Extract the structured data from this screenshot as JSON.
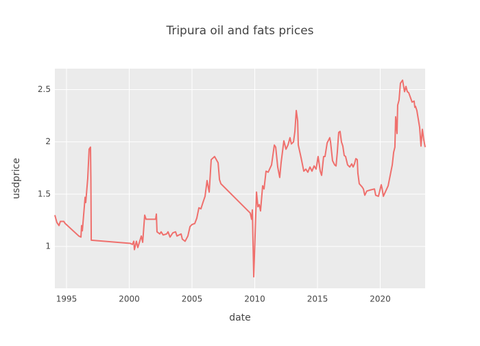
{
  "chart_data": {
    "type": "line",
    "title": "Tripura oil and fats prices",
    "x_label": "date",
    "y_label": "usdprice",
    "x": [
      1994.07,
      1994.23,
      1994.4,
      1994.51,
      1994.78,
      1994.89,
      1995.98,
      1996.15,
      1996.2,
      1996.26,
      1996.48,
      1996.53,
      1996.69,
      1996.8,
      1996.91,
      1996.94,
      1996.97,
      2000.08,
      2000.25,
      2000.36,
      2000.41,
      2000.57,
      2000.68,
      2000.96,
      2001.07,
      2001.23,
      2001.34,
      2002.1,
      2002.16,
      2002.21,
      2002.43,
      2002.54,
      2002.7,
      2002.98,
      2003.09,
      2003.25,
      2003.47,
      2003.69,
      2003.8,
      2004.13,
      2004.23,
      2004.45,
      2004.67,
      2004.84,
      2005.0,
      2005.22,
      2005.38,
      2005.55,
      2005.71,
      2005.87,
      2006.04,
      2006.2,
      2006.37,
      2006.53,
      2006.8,
      2007.08,
      2007.19,
      2007.3,
      2009.64,
      2009.75,
      2009.81,
      2009.92,
      2010.14,
      2010.25,
      2010.36,
      2010.46,
      2010.63,
      2010.74,
      2010.9,
      2011.07,
      2011.34,
      2011.56,
      2011.67,
      2011.83,
      2011.99,
      2012.1,
      2012.32,
      2012.49,
      2012.65,
      2012.81,
      2012.92,
      2013.09,
      2013.2,
      2013.31,
      2013.42,
      2013.47,
      2013.69,
      2013.91,
      2014.07,
      2014.23,
      2014.4,
      2014.56,
      2014.73,
      2014.89,
      2015.05,
      2015.22,
      2015.33,
      2015.49,
      2015.6,
      2015.77,
      2015.98,
      2016.04,
      2016.2,
      2016.37,
      2016.48,
      2016.58,
      2016.69,
      2016.8,
      2016.91,
      2017.02,
      2017.13,
      2017.24,
      2017.4,
      2017.57,
      2017.73,
      2017.84,
      2017.95,
      2018.06,
      2018.17,
      2018.22,
      2018.33,
      2018.55,
      2018.66,
      2018.77,
      2018.93,
      2019.21,
      2019.54,
      2019.64,
      2019.86,
      2020.08,
      2020.14,
      2020.25,
      2020.63,
      2020.96,
      2021.07,
      2021.17,
      2021.23,
      2021.34,
      2021.39,
      2021.5,
      2021.61,
      2021.78,
      2021.94,
      2022.05,
      2022.16,
      2022.27,
      2022.54,
      2022.7,
      2022.76,
      2022.81,
      2022.92,
      2023.14,
      2023.25,
      2023.36,
      2023.47,
      2023.58
    ],
    "values": [
      1.3,
      1.23,
      1.2,
      1.24,
      1.24,
      1.22,
      1.1,
      1.09,
      1.2,
      1.15,
      1.47,
      1.42,
      1.65,
      1.93,
      1.95,
      1.65,
      1.06,
      1.03,
      1.02,
      1.05,
      0.97,
      1.05,
      0.99,
      1.1,
      1.04,
      1.3,
      1.26,
      1.26,
      1.31,
      1.14,
      1.12,
      1.14,
      1.11,
      1.12,
      1.14,
      1.09,
      1.13,
      1.14,
      1.1,
      1.12,
      1.07,
      1.05,
      1.1,
      1.19,
      1.21,
      1.22,
      1.27,
      1.37,
      1.36,
      1.42,
      1.48,
      1.63,
      1.52,
      1.83,
      1.86,
      1.8,
      1.64,
      1.6,
      1.32,
      1.26,
      1.35,
      0.71,
      1.52,
      1.38,
      1.4,
      1.34,
      1.58,
      1.55,
      1.72,
      1.71,
      1.78,
      1.97,
      1.95,
      1.76,
      1.66,
      1.8,
      2.01,
      1.93,
      1.97,
      2.04,
      1.98,
      2.0,
      2.1,
      2.3,
      2.2,
      1.97,
      1.85,
      1.72,
      1.74,
      1.71,
      1.76,
      1.72,
      1.77,
      1.74,
      1.86,
      1.72,
      1.68,
      1.86,
      1.86,
      1.99,
      2.04,
      2.0,
      1.82,
      1.78,
      1.77,
      1.9,
      2.09,
      2.1,
      2.0,
      1.96,
      1.87,
      1.86,
      1.78,
      1.76,
      1.79,
      1.76,
      1.79,
      1.84,
      1.83,
      1.7,
      1.6,
      1.57,
      1.55,
      1.49,
      1.53,
      1.54,
      1.55,
      1.49,
      1.48,
      1.59,
      1.56,
      1.48,
      1.58,
      1.78,
      1.9,
      1.95,
      2.24,
      2.08,
      2.35,
      2.4,
      2.56,
      2.59,
      2.48,
      2.53,
      2.48,
      2.47,
      2.38,
      2.39,
      2.33,
      2.34,
      2.3,
      2.14,
      1.96,
      2.12,
      2.02,
      1.95
    ],
    "color": "#ef6f6c",
    "xlim": [
      1994.07,
      2023.58
    ],
    "ylim": [
      0.6,
      2.7
    ],
    "xticks": [
      1995,
      2000,
      2005,
      2010,
      2015,
      2020
    ],
    "yticks": [
      1,
      1.5,
      2,
      2.5
    ],
    "grid": true
  }
}
